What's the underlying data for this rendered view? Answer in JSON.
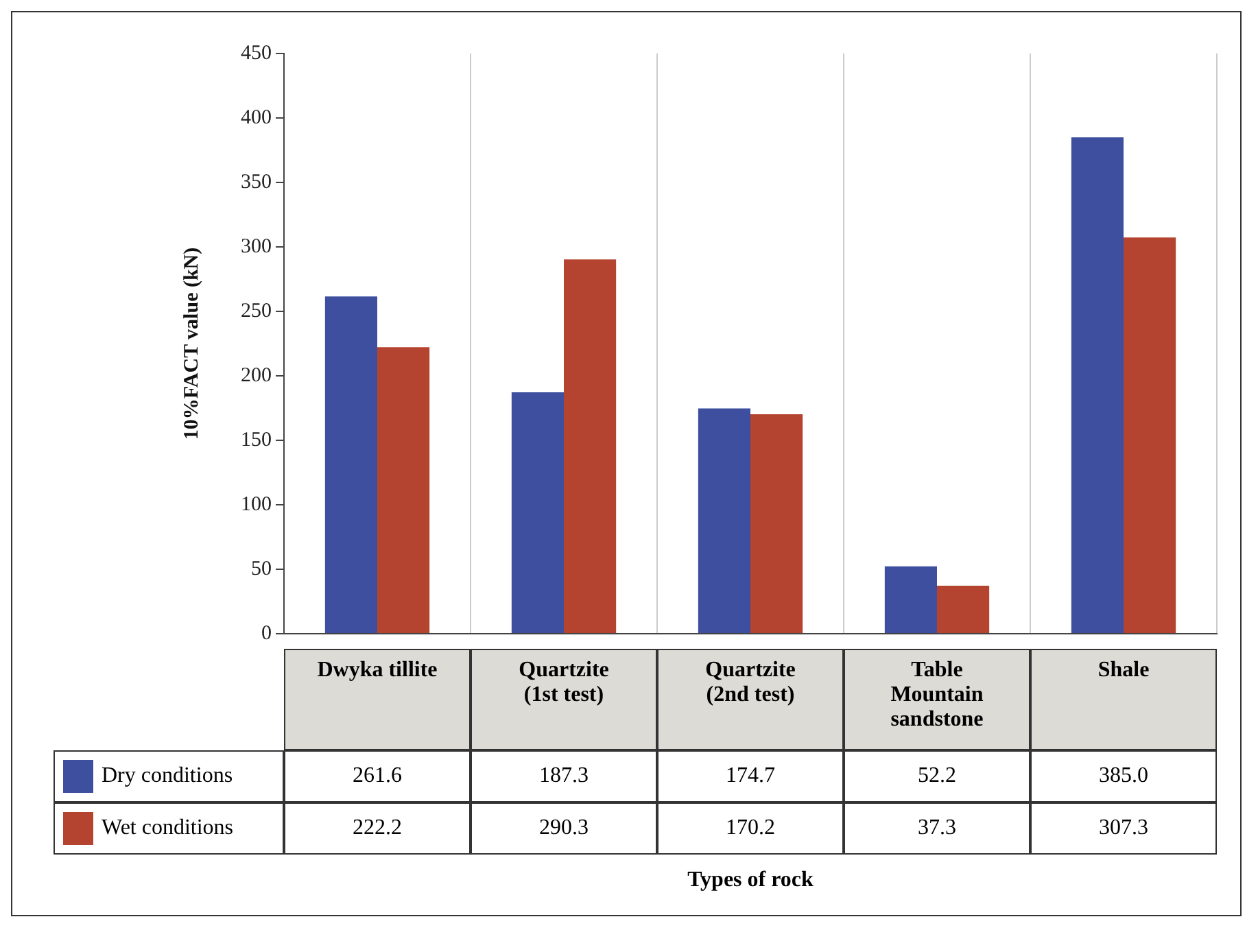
{
  "chart_data": {
    "type": "bar",
    "ylabel": "10%FACT value (kN)",
    "annotations": [
      "Types of rock"
    ],
    "categories": [
      "Dwyka tillite",
      "Quartzite (1st test)",
      "Quartzite (2nd test)",
      "Table Mountain sandstone",
      "Shale"
    ],
    "series": [
      {
        "name": "Dry conditions",
        "color": "#3d4f9e",
        "values": [
          261.6,
          187.3,
          174.7,
          52.2,
          385.0
        ],
        "value_labels": [
          "261.6",
          "187.3",
          "174.7",
          "52.2",
          "385.0"
        ]
      },
      {
        "name": "Wet conditions",
        "color": "#b4442f",
        "values": [
          222.2,
          290.3,
          170.2,
          37.3,
          307.3
        ],
        "value_labels": [
          "222.2",
          "290.3",
          "170.2",
          "37.3",
          "307.3"
        ]
      }
    ],
    "ylim": [
      0,
      450
    ],
    "yticks": [
      0,
      50,
      100,
      150,
      200,
      250,
      300,
      350,
      400,
      450
    ],
    "grid": "x",
    "legend": "bottom"
  }
}
